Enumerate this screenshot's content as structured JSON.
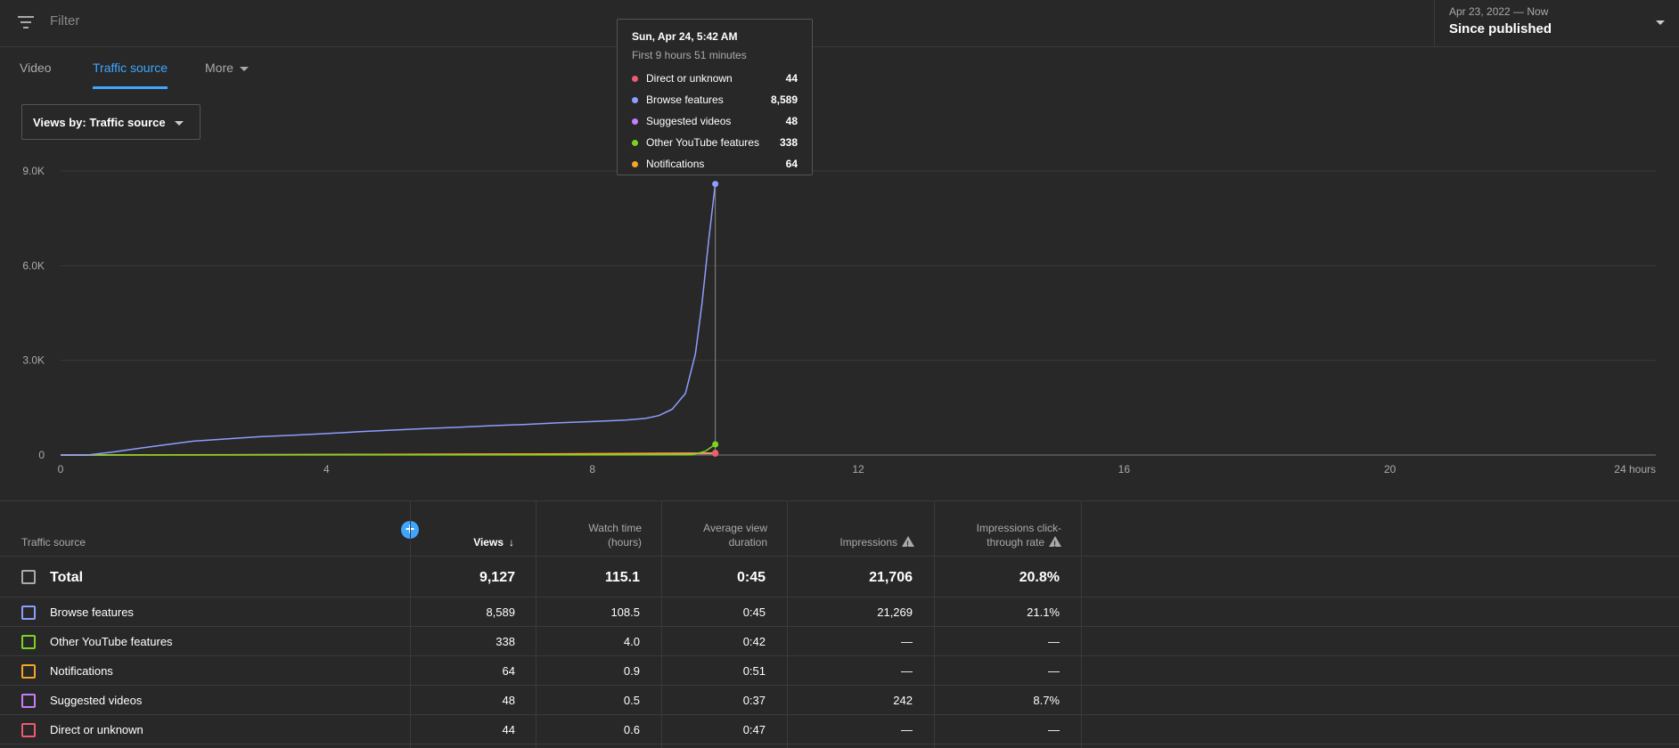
{
  "filter": {
    "placeholder": "Filter"
  },
  "date": {
    "range": "Apr 23, 2022 — Now",
    "label": "Since published"
  },
  "tabs": [
    {
      "label": "Video",
      "active": false
    },
    {
      "label": "Traffic source",
      "active": true
    },
    {
      "label": "More",
      "active": false
    }
  ],
  "dropdown": {
    "label": "Views by: Traffic source"
  },
  "tooltip": {
    "title": "Sun, Apr 24, 5:42 AM",
    "subtitle": "First 9 hours 51 minutes",
    "rows": [
      {
        "name": "Direct or unknown",
        "value": "44",
        "color": "#ef5a6f"
      },
      {
        "name": "Browse features",
        "value": "8,589",
        "color": "#8c9eff"
      },
      {
        "name": "Suggested videos",
        "value": "48",
        "color": "#c77dff"
      },
      {
        "name": "Other YouTube features",
        "value": "338",
        "color": "#7ed321"
      },
      {
        "name": "Notifications",
        "value": "64",
        "color": "#f5a623"
      }
    ]
  },
  "chart_data": {
    "type": "line",
    "xlabel": "",
    "ylabel": "",
    "x_ticks": [
      "0",
      "4",
      "8",
      "12",
      "16",
      "20",
      "24 hours"
    ],
    "y_ticks": [
      "0",
      "3.0K",
      "6.0K",
      "9.0K"
    ],
    "xlim": [
      0,
      24
    ],
    "ylim": [
      0,
      9000
    ],
    "cursor_x": 9.85,
    "series": [
      {
        "name": "Browse features",
        "color": "#8c9eff",
        "points": [
          [
            0,
            0
          ],
          [
            0.4,
            0
          ],
          [
            0.8,
            100
          ],
          [
            1.2,
            220
          ],
          [
            1.6,
            330
          ],
          [
            2.0,
            440
          ],
          [
            2.5,
            510
          ],
          [
            3.0,
            580
          ],
          [
            3.5,
            630
          ],
          [
            4.0,
            680
          ],
          [
            4.5,
            740
          ],
          [
            5.0,
            790
          ],
          [
            5.5,
            840
          ],
          [
            6.0,
            880
          ],
          [
            6.5,
            930
          ],
          [
            7.0,
            970
          ],
          [
            7.5,
            1020
          ],
          [
            8.0,
            1060
          ],
          [
            8.5,
            1110
          ],
          [
            8.8,
            1160
          ],
          [
            9.0,
            1250
          ],
          [
            9.2,
            1450
          ],
          [
            9.4,
            1950
          ],
          [
            9.55,
            3200
          ],
          [
            9.65,
            4800
          ],
          [
            9.75,
            6800
          ],
          [
            9.85,
            8589
          ]
        ]
      },
      {
        "name": "Other YouTube features",
        "color": "#7ed321",
        "points": [
          [
            0,
            0
          ],
          [
            9.5,
            5
          ],
          [
            9.7,
            120
          ],
          [
            9.85,
            338
          ]
        ]
      },
      {
        "name": "Notifications",
        "color": "#f5a623",
        "points": [
          [
            0,
            0
          ],
          [
            3.3,
            10
          ],
          [
            7.0,
            30
          ],
          [
            9.85,
            64
          ]
        ]
      },
      {
        "name": "Suggested videos",
        "color": "#c77dff",
        "points": [
          [
            0,
            0
          ],
          [
            7.0,
            20
          ],
          [
            9.85,
            48
          ]
        ]
      },
      {
        "name": "Direct or unknown",
        "color": "#ef5a6f",
        "points": [
          [
            0,
            0
          ],
          [
            9.85,
            44
          ]
        ]
      }
    ]
  },
  "table": {
    "headers": {
      "source": "Traffic source",
      "views": "Views",
      "sort_arrow": "↓",
      "watch_time": "Watch time (hours)",
      "avg_duration": "Average view duration",
      "impressions": "Impressions",
      "ctr": "Impressions click-through rate"
    },
    "total": {
      "label": "Total",
      "views": "9,127",
      "watch_time": "115.1",
      "avg_duration": "0:45",
      "impressions": "21,706",
      "ctr": "20.8%"
    },
    "rows": [
      {
        "name": "Browse features",
        "color": "#8c9eff",
        "views": "8,589",
        "watch_time": "108.5",
        "avg_duration": "0:45",
        "impressions": "21,269",
        "ctr": "21.1%"
      },
      {
        "name": "Other YouTube features",
        "color": "#7ed321",
        "views": "338",
        "watch_time": "4.0",
        "avg_duration": "0:42",
        "impressions": "—",
        "ctr": "—"
      },
      {
        "name": "Notifications",
        "color": "#f5a623",
        "views": "64",
        "watch_time": "0.9",
        "avg_duration": "0:51",
        "impressions": "—",
        "ctr": "—"
      },
      {
        "name": "Suggested videos",
        "color": "#c77dff",
        "views": "48",
        "watch_time": "0.5",
        "avg_duration": "0:37",
        "impressions": "242",
        "ctr": "8.7%"
      },
      {
        "name": "Direct or unknown",
        "color": "#ef5a6f",
        "views": "44",
        "watch_time": "0.6",
        "avg_duration": "0:47",
        "impressions": "—",
        "ctr": "—"
      }
    ]
  }
}
